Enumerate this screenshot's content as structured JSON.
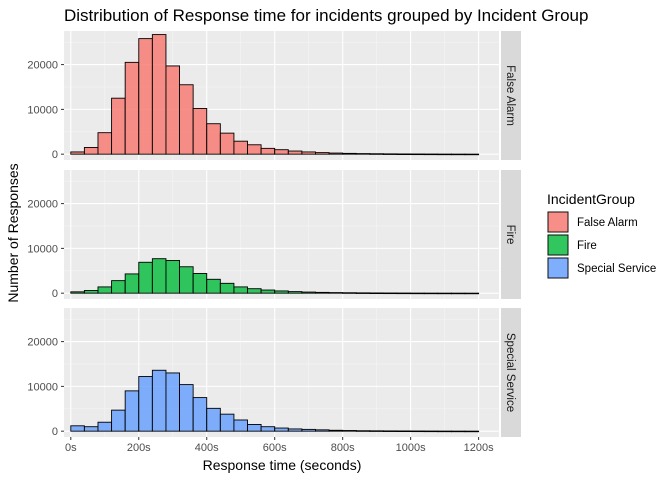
{
  "chart_data": {
    "type": "bar",
    "title": "Distribution of Response time for incidents grouped by Incident Group",
    "xlabel": "Response time (seconds)",
    "ylabel": "Number of Responses",
    "x_unit": "seconds",
    "bin_width": 40,
    "xlim": [
      -20,
      1260
    ],
    "ylim": [
      -1300,
      27500
    ],
    "x_ticks": [
      0,
      200,
      400,
      600,
      800,
      1000,
      1200
    ],
    "x_tick_labels": [
      "0s",
      "200s",
      "400s",
      "600s",
      "800s",
      "1000s",
      "1200s"
    ],
    "y_ticks": [
      0,
      10000,
      20000
    ],
    "y_tick_labels": [
      "0",
      "10000",
      "20000"
    ],
    "bin_centers": [
      20,
      60,
      100,
      140,
      180,
      220,
      260,
      300,
      340,
      380,
      420,
      460,
      500,
      540,
      580,
      620,
      660,
      700,
      740,
      780,
      820,
      860,
      900,
      940,
      980,
      1020,
      1060,
      1100,
      1140,
      1180
    ],
    "grid": true,
    "legend": {
      "title": "IncidentGroup",
      "position": "right",
      "entries": [
        "False Alarm",
        "Fire",
        "Special Service"
      ]
    },
    "series": [
      {
        "name": "False Alarm",
        "color": "#F8766D",
        "values": [
          500,
          1500,
          4800,
          12500,
          20500,
          25800,
          26700,
          19700,
          15500,
          10200,
          6800,
          4700,
          2900,
          2100,
          1300,
          1000,
          700,
          500,
          350,
          250,
          180,
          130,
          100,
          70,
          50,
          40,
          30,
          20,
          15,
          10
        ]
      },
      {
        "name": "Fire",
        "color": "#00BA38",
        "values": [
          300,
          600,
          1400,
          2800,
          4300,
          6900,
          7700,
          7300,
          5900,
          4400,
          3100,
          2200,
          1400,
          1000,
          700,
          500,
          350,
          250,
          180,
          130,
          100,
          70,
          50,
          40,
          30,
          20,
          15,
          10,
          8,
          5
        ]
      },
      {
        "name": "Special Service",
        "color": "#619CFF",
        "values": [
          1200,
          1000,
          2000,
          4700,
          9000,
          12200,
          13600,
          13000,
          10400,
          7500,
          5100,
          3800,
          2500,
          1500,
          1000,
          700,
          500,
          400,
          300,
          200,
          150,
          100,
          80,
          60,
          50,
          40,
          30,
          20,
          15,
          10
        ]
      }
    ]
  }
}
